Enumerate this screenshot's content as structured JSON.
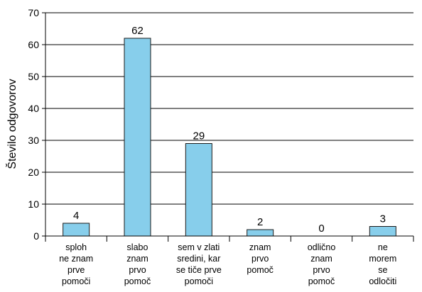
{
  "chart_data": {
    "type": "bar",
    "ylabel": "Število odgovorov",
    "ylim": [
      0,
      70
    ],
    "yticks": [
      0,
      10,
      20,
      30,
      40,
      50,
      60,
      70
    ],
    "grid": true,
    "categories": [
      [
        "sploh",
        "ne znam",
        "prve",
        "pomoči"
      ],
      [
        "slabo",
        "znam",
        "prvo",
        "pomoč"
      ],
      [
        "sem v zlati",
        "sredini, kar",
        "se tiče prve",
        "pomoči"
      ],
      [
        "znam",
        "prvo",
        "pomoč"
      ],
      [
        "odlično",
        "znam",
        "prvo",
        "pomoč"
      ],
      [
        "ne",
        "morem",
        "se",
        "odločiti"
      ]
    ],
    "values": [
      4,
      62,
      29,
      2,
      0,
      3
    ],
    "colors": {
      "bar_fill": "#87CEEB",
      "bar_stroke": "#1a1a1a",
      "grid": "#000000"
    }
  }
}
